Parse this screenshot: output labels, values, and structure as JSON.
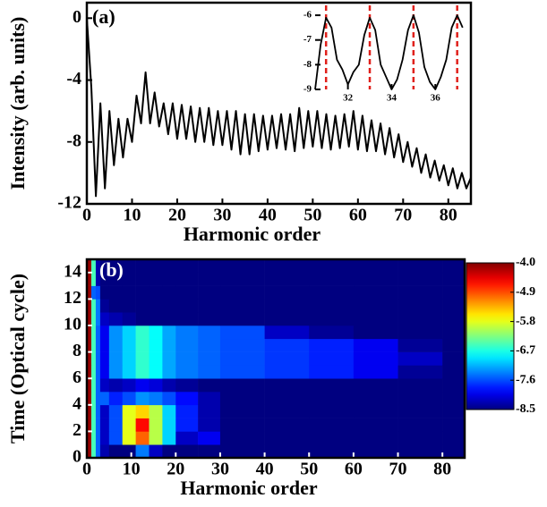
{
  "chart_data": [
    {
      "type": "line",
      "panel_label": "(a)",
      "ylabel": "Intensity (arb. units)",
      "xlabel": "Harmonic order",
      "color": "#000000",
      "x": [
        0,
        1,
        2,
        3,
        4,
        5,
        6,
        7,
        8,
        9,
        10,
        11,
        12,
        13,
        14,
        15,
        16,
        17,
        18,
        19,
        20,
        21,
        22,
        23,
        24,
        25,
        26,
        27,
        28,
        29,
        30,
        31,
        32,
        33,
        34,
        35,
        36,
        37,
        38,
        39,
        40,
        41,
        42,
        43,
        44,
        45,
        46,
        47,
        48,
        49,
        50,
        51,
        52,
        53,
        54,
        55,
        56,
        57,
        58,
        59,
        60,
        61,
        62,
        63,
        64,
        65,
        66,
        67,
        68,
        69,
        70,
        71,
        72,
        73,
        74,
        75,
        76,
        77,
        78,
        79,
        80,
        81,
        82,
        83,
        84,
        85
      ],
      "values": [
        0,
        -4.5,
        -11.5,
        -5.5,
        -11,
        -6,
        -9.5,
        -6.5,
        -9,
        -6.5,
        -8,
        -5,
        -6.8,
        -3.5,
        -6.8,
        -4.8,
        -7,
        -5.5,
        -7.5,
        -5.5,
        -7.8,
        -5.6,
        -7.8,
        -5.7,
        -8,
        -5.8,
        -8,
        -5.8,
        -8.2,
        -6,
        -8.2,
        -6,
        -8.5,
        -6,
        -8.8,
        -6.2,
        -8.8,
        -6.2,
        -8.6,
        -6.3,
        -8.5,
        -6.3,
        -8.4,
        -6.2,
        -8.5,
        -6.2,
        -8.6,
        -5.8,
        -8.4,
        -6,
        -8.3,
        -6,
        -8.4,
        -6.2,
        -8.5,
        -6.3,
        -8.4,
        -6.2,
        -8.3,
        -6,
        -8.5,
        -6.3,
        -8.6,
        -6.6,
        -8.6,
        -6.8,
        -8.8,
        -7.1,
        -9,
        -7.5,
        -9.3,
        -8,
        -9.6,
        -8.4,
        -10,
        -8.8,
        -10.3,
        -9.2,
        -10.5,
        -9.5,
        -10.8,
        -9.7,
        -11,
        -10,
        -11,
        -10.3
      ],
      "xlim": [
        0,
        85
      ],
      "ylim": [
        -12,
        1
      ],
      "xticks": [
        0,
        10,
        20,
        30,
        40,
        50,
        60,
        70,
        80
      ],
      "yticks": [
        0,
        -4,
        -8,
        -12
      ],
      "inset": {
        "color": "#000000",
        "marker_color": "#e0201b",
        "x": [
          30.5,
          30.75,
          31,
          31.25,
          31.5,
          31.75,
          32,
          32.25,
          32.5,
          32.75,
          33,
          33.25,
          33.5,
          33.75,
          34,
          34.25,
          34.5,
          34.75,
          35,
          35.25,
          35.5,
          35.75,
          36,
          36.25,
          36.5,
          36.75,
          37,
          37.25
        ],
        "values": [
          -9,
          -7.2,
          -6.1,
          -6.5,
          -7.8,
          -8.2,
          -8.8,
          -8.3,
          -8,
          -6.8,
          -6.1,
          -6.6,
          -8,
          -8.5,
          -9,
          -8.6,
          -7.8,
          -6.6,
          -6,
          -6.7,
          -8.1,
          -8.7,
          -9,
          -8.5,
          -7.8,
          -6.5,
          -6,
          -6.5
        ],
        "marker_x": [
          31,
          33,
          35,
          37
        ],
        "xlim": [
          30.5,
          37.3
        ],
        "ylim": [
          -9,
          -5.6
        ],
        "xticks": [
          32,
          34,
          36
        ],
        "yticks": [
          -6,
          -7,
          -8,
          -9
        ]
      }
    },
    {
      "type": "heatmap",
      "panel_label": "(b)",
      "ylabel": "Time (Optical cycle)",
      "xlabel": "Harmonic order",
      "colormap": "jet",
      "x_edges": [
        0,
        1,
        2,
        3,
        5,
        8,
        11,
        14,
        17,
        20,
        25,
        30,
        40,
        50,
        60,
        70,
        80,
        85
      ],
      "y_edges": [
        0,
        1,
        2,
        3,
        4,
        5,
        6,
        7,
        8,
        9,
        10,
        11,
        12,
        13,
        14,
        15
      ],
      "z": [
        [
          -4.1,
          -6.5,
          -7.5,
          -8.3,
          -8.5,
          -8.5,
          -7.4,
          -8.2,
          -8.5,
          -8.5,
          -8.5,
          -8.5,
          -8.5,
          -8.5,
          -8.5,
          -8.5,
          -8.5
        ],
        [
          -4.1,
          -6.5,
          -7.5,
          -8.2,
          -7.6,
          -5.8,
          -5.0,
          -6.0,
          -7.0,
          -8.2,
          -8.0,
          -8.5,
          -8.5,
          -8.5,
          -8.5,
          -8.5,
          -8.5
        ],
        [
          -4.1,
          -6.5,
          -7.5,
          -8.2,
          -7.6,
          -5.8,
          -4.6,
          -6.0,
          -7.0,
          -7.8,
          -8.3,
          -8.5,
          -8.5,
          -8.5,
          -8.5,
          -8.5,
          -8.5
        ],
        [
          -4.1,
          -6.5,
          -7.5,
          -8.2,
          -7.6,
          -5.8,
          -5.5,
          -6.0,
          -7.0,
          -7.8,
          -8.3,
          -8.5,
          -8.5,
          -8.5,
          -8.5,
          -8.5,
          -8.5
        ],
        [
          -4.1,
          -6.5,
          -7.5,
          -7.5,
          -7.8,
          -7.6,
          -7.3,
          -7.4,
          -7.6,
          -7.9,
          -8.3,
          -8.5,
          -8.5,
          -8.5,
          -8.5,
          -8.5,
          -8.5
        ],
        [
          -4.1,
          -6.5,
          -7.5,
          -8.2,
          -8.3,
          -8.2,
          -8.0,
          -8.1,
          -8.3,
          -8.4,
          -8.5,
          -8.5,
          -8.5,
          -8.5,
          -8.5,
          -8.5,
          -8.5
        ],
        [
          -4.1,
          -6.5,
          -7.5,
          -8.0,
          -7.3,
          -7.0,
          -6.6,
          -6.8,
          -7.2,
          -7.4,
          -7.5,
          -7.6,
          -7.7,
          -7.8,
          -8.0,
          -8.4,
          -8.5
        ],
        [
          -4.1,
          -6.5,
          -7.5,
          -8.0,
          -7.3,
          -7.0,
          -6.6,
          -6.8,
          -7.2,
          -7.4,
          -7.5,
          -7.6,
          -7.7,
          -7.8,
          -8.0,
          -8.2,
          -8.5
        ],
        [
          -4.1,
          -6.5,
          -7.5,
          -8.0,
          -7.3,
          -7.0,
          -6.6,
          -6.8,
          -7.2,
          -7.4,
          -7.5,
          -7.6,
          -7.7,
          -7.8,
          -8.0,
          -8.4,
          -8.5
        ],
        [
          -4.1,
          -6.5,
          -7.5,
          -8.0,
          -7.3,
          -7.0,
          -6.6,
          -6.8,
          -7.2,
          -7.4,
          -7.5,
          -7.6,
          -8.2,
          -8.4,
          -8.5,
          -8.5,
          -8.5
        ],
        [
          -4.1,
          -6.5,
          -7.4,
          -8.2,
          -8.3,
          -8.4,
          -8.5,
          -8.5,
          -8.5,
          -8.5,
          -8.5,
          -8.5,
          -8.5,
          -8.5,
          -8.5,
          -8.5,
          -8.5
        ],
        [
          -4.1,
          -6.5,
          -7.4,
          -8.4,
          -8.5,
          -8.5,
          -8.5,
          -8.5,
          -8.5,
          -8.5,
          -8.5,
          -8.5,
          -8.5,
          -8.5,
          -8.5,
          -8.5,
          -8.5
        ],
        [
          -4.1,
          -7.5,
          -7.6,
          -8.5,
          -8.5,
          -8.5,
          -8.5,
          -8.5,
          -8.5,
          -8.5,
          -8.5,
          -8.5,
          -8.5,
          -8.5,
          -8.5,
          -8.5,
          -8.5
        ],
        [
          -4.1,
          -6.5,
          -8.3,
          -8.5,
          -8.5,
          -8.5,
          -8.5,
          -8.5,
          -8.5,
          -8.5,
          -8.5,
          -8.5,
          -8.5,
          -8.5,
          -8.5,
          -8.5,
          -8.5
        ],
        [
          -4.1,
          -6.5,
          -8.3,
          -8.5,
          -8.5,
          -8.5,
          -8.5,
          -8.5,
          -8.5,
          -8.5,
          -8.5,
          -8.5,
          -8.5,
          -8.5,
          -8.5,
          -8.5,
          -8.5
        ]
      ],
      "xlim": [
        0,
        85
      ],
      "ylim": [
        0,
        15
      ],
      "xticks": [
        0,
        10,
        20,
        30,
        40,
        50,
        60,
        70,
        80
      ],
      "yticks": [
        0,
        2,
        4,
        6,
        8,
        10,
        12,
        14
      ],
      "zlim": [
        -8.5,
        -4.0
      ],
      "colorbar_ticks": [
        {
          "value": -4.0,
          "label": "-4.0"
        },
        -4.9,
        -5.8,
        -6.7,
        -7.6,
        -8.5
      ]
    }
  ]
}
